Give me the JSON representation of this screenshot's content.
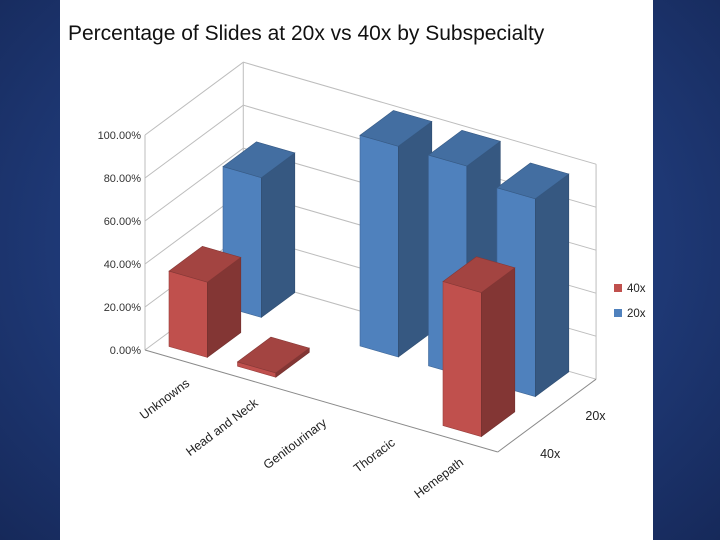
{
  "chart_data": {
    "type": "bar",
    "subtype": "3d-clustered-column",
    "title": "Percentage of Slides at 20x vs 40x by Subspecialty",
    "categories": [
      "Unknowns",
      "Head and Neck",
      "Genitourinary",
      "Thoracic",
      "Hemepath"
    ],
    "series": [
      {
        "name": "40x",
        "color": "#c0504d",
        "values": [
          35,
          2,
          0,
          0,
          67
        ]
      },
      {
        "name": "20x",
        "color": "#4f81bd",
        "values": [
          65,
          0,
          98,
          98,
          92
        ]
      }
    ],
    "depth_labels": [
      "20x",
      "40x"
    ],
    "ylim": [
      0,
      100
    ],
    "yticks": [
      "0.00%",
      "20.00%",
      "40.00%",
      "60.00%",
      "80.00%",
      "100.00%"
    ],
    "legend_position": "right"
  }
}
